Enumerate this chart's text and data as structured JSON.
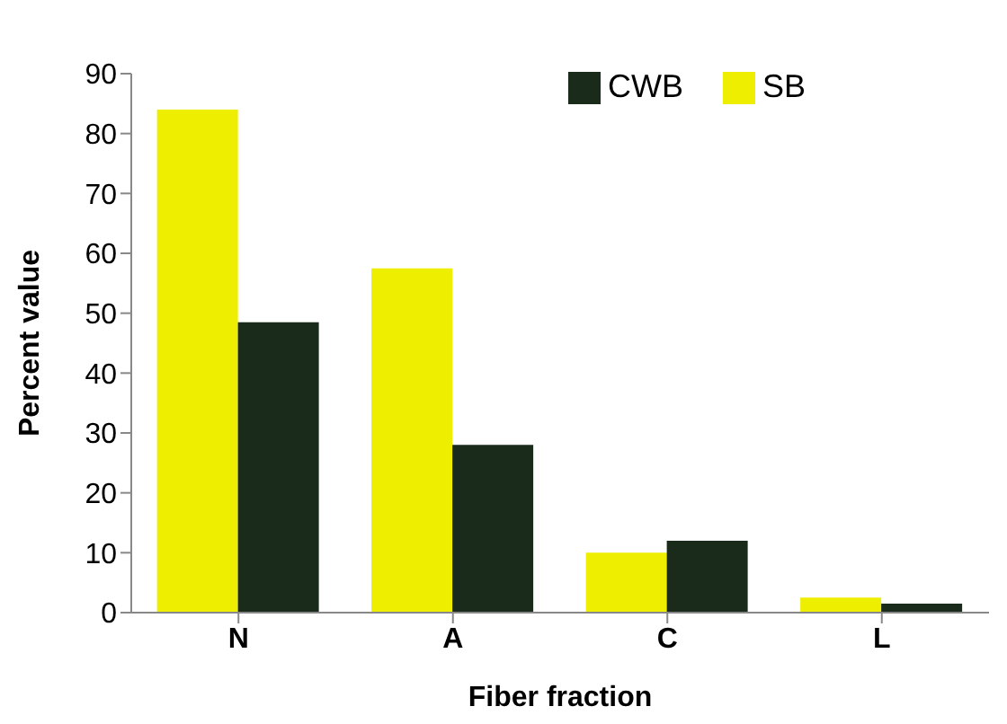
{
  "chart_data": {
    "type": "bar",
    "xlabel": "Fiber fraction",
    "ylabel": "Percent value",
    "categories": [
      "N",
      "A",
      "C",
      "L"
    ],
    "series": [
      {
        "name": "SB",
        "color": "#eeee00",
        "values": [
          84,
          57.5,
          10,
          2.5
        ]
      },
      {
        "name": "CWB",
        "color": "#1a2b1c",
        "values": [
          48.5,
          28,
          12,
          1.5
        ]
      }
    ],
    "ylim": [
      0,
      90
    ],
    "yticks": [
      0,
      10,
      20,
      30,
      40,
      50,
      60,
      70,
      80,
      90
    ],
    "grid": false,
    "legend": "top right"
  }
}
